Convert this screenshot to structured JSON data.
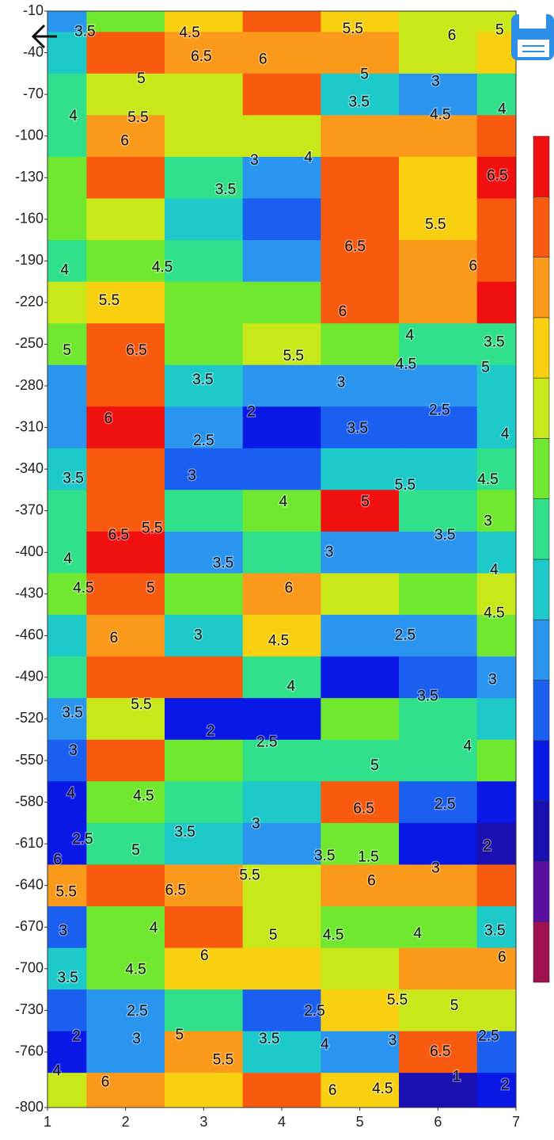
{
  "chart_data": {
    "type": "contour",
    "x": [
      1,
      2,
      3,
      4,
      5,
      6,
      7
    ],
    "y": [
      -10,
      -40,
      -70,
      -100,
      -130,
      -160,
      -190,
      -220,
      -250,
      -280,
      -310,
      -340,
      -370,
      -400,
      -430,
      -460,
      -490,
      -520,
      -550,
      -580,
      -610,
      -640,
      -670,
      -700,
      -730,
      -760,
      -790
    ],
    "z": [
      [
        3,
        4.5,
        5.5,
        6.5,
        5.5,
        5,
        5
      ],
      [
        3.5,
        6.5,
        6,
        6,
        6,
        5,
        5.5
      ],
      [
        4,
        5,
        5,
        6.5,
        3.5,
        3,
        4
      ],
      [
        4,
        6,
        5,
        5,
        6,
        6,
        6.5
      ],
      [
        4.5,
        6.5,
        4,
        3,
        6.5,
        5.5,
        7
      ],
      [
        4.5,
        5,
        3.5,
        2.5,
        6.5,
        5.5,
        6.5
      ],
      [
        4,
        4.5,
        4,
        3,
        6.5,
        6,
        6.5
      ],
      [
        5,
        5.5,
        4.5,
        4.5,
        6.5,
        6,
        7
      ],
      [
        4.5,
        6.5,
        4.5,
        5,
        4.5,
        4,
        4
      ],
      [
        3,
        6.5,
        3.5,
        3,
        3,
        3,
        3.5
      ],
      [
        3,
        7,
        3,
        2,
        2.5,
        2.5,
        3.5
      ],
      [
        3.5,
        6.5,
        2.5,
        2.5,
        3.5,
        3.5,
        4
      ],
      [
        4,
        6.5,
        4,
        4.5,
        7,
        4,
        4.5
      ],
      [
        4,
        7,
        3,
        4,
        3,
        3,
        3.5
      ],
      [
        4.5,
        6.5,
        4.5,
        6,
        5,
        4.5,
        5
      ],
      [
        3.5,
        6,
        3.5,
        5.5,
        3,
        3,
        4.5
      ],
      [
        4,
        6.5,
        6.5,
        4,
        2,
        2.5,
        3
      ],
      [
        3,
        5,
        2,
        2,
        4.5,
        4,
        3.5
      ],
      [
        2.5,
        6.5,
        4.5,
        4,
        4,
        4,
        4.5
      ],
      [
        2,
        4.5,
        4,
        3.5,
        6.5,
        2.5,
        2
      ],
      [
        2,
        4,
        3.5,
        3,
        4.5,
        2,
        1.5
      ],
      [
        6,
        6.5,
        6,
        5,
        6,
        6,
        6.5
      ],
      [
        2.5,
        4.5,
        6.5,
        5,
        4.5,
        4.5,
        3.5
      ],
      [
        3.5,
        4.5,
        5.5,
        5.5,
        5,
        6,
        6
      ],
      [
        2.5,
        3,
        4,
        2.5,
        5.5,
        5,
        5
      ],
      [
        2,
        3,
        6,
        3.5,
        3,
        6.5,
        2.5
      ],
      [
        5,
        6,
        5.5,
        6.5,
        5.5,
        1.5,
        2
      ]
    ],
    "levels": [
      0.5,
      1,
      1.5,
      2,
      2.5,
      3,
      3.5,
      4,
      4.5,
      5,
      5.5,
      6,
      6.5,
      7
    ],
    "colors": [
      "#a0124f",
      "#5a0fa0",
      "#1a0fb0",
      "#0a18e6",
      "#1a5fef",
      "#2a95ee",
      "#1ec9c9",
      "#30e08a",
      "#70e830",
      "#c8e81a",
      "#f8d010",
      "#fb9a1a",
      "#f85a10",
      "#f01010"
    ],
    "xlim": [
      1,
      7
    ],
    "ylim": [
      -800,
      -10
    ],
    "xticks": [
      1,
      2,
      3,
      4,
      5,
      6,
      7
    ],
    "yticks": [
      -10,
      -40,
      -70,
      -100,
      -130,
      -160,
      -190,
      -220,
      -250,
      -280,
      -310,
      -340,
      -370,
      -400,
      -430,
      -460,
      -490,
      -520,
      -550,
      -580,
      -610,
      -640,
      -670,
      -700,
      -730,
      -760,
      -800
    ],
    "contour_labels": [
      {
        "x": 1.48,
        "y": -25,
        "value": 3.5
      },
      {
        "x": 2.82,
        "y": -26,
        "value": 4.5
      },
      {
        "x": 4.91,
        "y": -23,
        "value": 5.5
      },
      {
        "x": 6.18,
        "y": -28,
        "value": 6
      },
      {
        "x": 6.79,
        "y": -24,
        "value": 5
      },
      {
        "x": 2.97,
        "y": -43,
        "value": 6.5
      },
      {
        "x": 3.76,
        "y": -45,
        "value": 6
      },
      {
        "x": 2.2,
        "y": -59,
        "value": 5
      },
      {
        "x": 5.06,
        "y": -56,
        "value": 5
      },
      {
        "x": 5.97,
        "y": -61,
        "value": 3
      },
      {
        "x": 4.99,
        "y": -76,
        "value": 3.5
      },
      {
        "x": 6.03,
        "y": -85,
        "value": 4.5
      },
      {
        "x": 6.82,
        "y": -81,
        "value": 4
      },
      {
        "x": 1.33,
        "y": -86,
        "value": 4
      },
      {
        "x": 2.16,
        "y": -87,
        "value": 5.5
      },
      {
        "x": 1.99,
        "y": -104,
        "value": 6
      },
      {
        "x": 3.65,
        "y": -118,
        "value": 3
      },
      {
        "x": 4.34,
        "y": -116,
        "value": 4
      },
      {
        "x": 3.28,
        "y": -139,
        "value": 3.5
      },
      {
        "x": 6.76,
        "y": -129,
        "value": 6.5
      },
      {
        "x": 5.97,
        "y": -164,
        "value": 5.5
      },
      {
        "x": 4.94,
        "y": -180,
        "value": 6.5
      },
      {
        "x": 2.47,
        "y": -195,
        "value": 4.5
      },
      {
        "x": 1.22,
        "y": -197,
        "value": 4
      },
      {
        "x": 6.45,
        "y": -194,
        "value": 6
      },
      {
        "x": 1.79,
        "y": -219,
        "value": 5.5
      },
      {
        "x": 4.78,
        "y": -227,
        "value": 6
      },
      {
        "x": 1.25,
        "y": -255,
        "value": 5
      },
      {
        "x": 2.14,
        "y": -255,
        "value": 6.5
      },
      {
        "x": 5.64,
        "y": -244,
        "value": 4
      },
      {
        "x": 6.72,
        "y": -249,
        "value": 3.5
      },
      {
        "x": 4.15,
        "y": -259,
        "value": 5.5
      },
      {
        "x": 5.59,
        "y": -265,
        "value": 4.5
      },
      {
        "x": 6.61,
        "y": -267,
        "value": 5
      },
      {
        "x": 2.99,
        "y": -276,
        "value": 3.5
      },
      {
        "x": 4.76,
        "y": -278,
        "value": 3
      },
      {
        "x": 3.61,
        "y": -299,
        "value": 2
      },
      {
        "x": 6.02,
        "y": -298,
        "value": 2.5
      },
      {
        "x": 1.78,
        "y": -304,
        "value": 6
      },
      {
        "x": 4.97,
        "y": -311,
        "value": 3.5
      },
      {
        "x": 6.86,
        "y": -315,
        "value": 4
      },
      {
        "x": 3.0,
        "y": -320,
        "value": 2.5
      },
      {
        "x": 2.85,
        "y": -345,
        "value": 3
      },
      {
        "x": 1.33,
        "y": -347,
        "value": 3.5
      },
      {
        "x": 5.58,
        "y": -352,
        "value": 5.5
      },
      {
        "x": 6.64,
        "y": -348,
        "value": 4.5
      },
      {
        "x": 4.02,
        "y": -364,
        "value": 4
      },
      {
        "x": 5.07,
        "y": -364,
        "value": 5
      },
      {
        "x": 1.91,
        "y": -388,
        "value": 6.5
      },
      {
        "x": 2.34,
        "y": -383,
        "value": 5.5
      },
      {
        "x": 6.09,
        "y": -388,
        "value": 3.5
      },
      {
        "x": 6.64,
        "y": -378,
        "value": 3
      },
      {
        "x": 1.26,
        "y": -405,
        "value": 4
      },
      {
        "x": 4.61,
        "y": -400,
        "value": 3
      },
      {
        "x": 3.25,
        "y": -408,
        "value": 3.5
      },
      {
        "x": 6.72,
        "y": -413,
        "value": 4
      },
      {
        "x": 1.46,
        "y": -426,
        "value": 4.5
      },
      {
        "x": 2.32,
        "y": -426,
        "value": 5
      },
      {
        "x": 4.09,
        "y": -426,
        "value": 6
      },
      {
        "x": 6.72,
        "y": -444,
        "value": 4.5
      },
      {
        "x": 1.85,
        "y": -462,
        "value": 6
      },
      {
        "x": 2.93,
        "y": -460,
        "value": 3
      },
      {
        "x": 3.96,
        "y": -464,
        "value": 4.5
      },
      {
        "x": 5.58,
        "y": -460,
        "value": 2.5
      },
      {
        "x": 4.12,
        "y": -497,
        "value": 4
      },
      {
        "x": 6.7,
        "y": -492,
        "value": 3
      },
      {
        "x": 5.87,
        "y": -504,
        "value": 3.5
      },
      {
        "x": 2.2,
        "y": -510,
        "value": 5.5
      },
      {
        "x": 1.32,
        "y": -516,
        "value": 3.5
      },
      {
        "x": 3.09,
        "y": -529,
        "value": 2
      },
      {
        "x": 3.81,
        "y": -537,
        "value": 2.5
      },
      {
        "x": 6.38,
        "y": -540,
        "value": 4
      },
      {
        "x": 1.33,
        "y": -543,
        "value": 3
      },
      {
        "x": 5.19,
        "y": -554,
        "value": 5
      },
      {
        "x": 1.3,
        "y": -574,
        "value": 4
      },
      {
        "x": 2.23,
        "y": -576,
        "value": 4.5
      },
      {
        "x": 5.05,
        "y": -585,
        "value": 6.5
      },
      {
        "x": 6.09,
        "y": -582,
        "value": 2.5
      },
      {
        "x": 3.67,
        "y": -596,
        "value": 3
      },
      {
        "x": 2.76,
        "y": -602,
        "value": 3.5
      },
      {
        "x": 1.45,
        "y": -607,
        "value": 2.5
      },
      {
        "x": 2.13,
        "y": -615,
        "value": 5
      },
      {
        "x": 4.55,
        "y": -619,
        "value": 3.5
      },
      {
        "x": 5.11,
        "y": -620,
        "value": 1.5
      },
      {
        "x": 6.63,
        "y": -612,
        "value": 2
      },
      {
        "x": 1.13,
        "y": -622,
        "value": 6
      },
      {
        "x": 5.97,
        "y": -628,
        "value": 3
      },
      {
        "x": 3.59,
        "y": -633,
        "value": 5.5
      },
      {
        "x": 5.15,
        "y": -637,
        "value": 6
      },
      {
        "x": 1.24,
        "y": -645,
        "value": 5.5
      },
      {
        "x": 2.64,
        "y": -644,
        "value": 6.5
      },
      {
        "x": 1.2,
        "y": -673,
        "value": 3
      },
      {
        "x": 2.36,
        "y": -671,
        "value": 4
      },
      {
        "x": 3.89,
        "y": -676,
        "value": 5
      },
      {
        "x": 4.66,
        "y": -676,
        "value": 4.5
      },
      {
        "x": 5.74,
        "y": -675,
        "value": 4
      },
      {
        "x": 6.73,
        "y": -673,
        "value": 3.5
      },
      {
        "x": 3.01,
        "y": -691,
        "value": 6
      },
      {
        "x": 6.82,
        "y": -692,
        "value": 6
      },
      {
        "x": 2.13,
        "y": -701,
        "value": 4.5
      },
      {
        "x": 1.26,
        "y": -707,
        "value": 3.5
      },
      {
        "x": 5.48,
        "y": -723,
        "value": 5.5
      },
      {
        "x": 6.21,
        "y": -727,
        "value": 5
      },
      {
        "x": 2.15,
        "y": -731,
        "value": 2.5
      },
      {
        "x": 4.42,
        "y": -731,
        "value": 2.5
      },
      {
        "x": 1.37,
        "y": -749,
        "value": 2
      },
      {
        "x": 2.14,
        "y": -751,
        "value": 3
      },
      {
        "x": 2.69,
        "y": -748,
        "value": 5
      },
      {
        "x": 3.84,
        "y": -751,
        "value": 3.5
      },
      {
        "x": 4.55,
        "y": -755,
        "value": 4
      },
      {
        "x": 5.42,
        "y": -752,
        "value": 3
      },
      {
        "x": 6.65,
        "y": -749,
        "value": 2.5
      },
      {
        "x": 6.03,
        "y": -760,
        "value": 6.5
      },
      {
        "x": 3.25,
        "y": -766,
        "value": 5.5
      },
      {
        "x": 1.12,
        "y": -774,
        "value": 4
      },
      {
        "x": 6.24,
        "y": -778,
        "value": 1
      },
      {
        "x": 1.74,
        "y": -782,
        "value": 6
      },
      {
        "x": 6.86,
        "y": -784,
        "value": 2
      },
      {
        "x": 4.65,
        "y": -788,
        "value": 6
      },
      {
        "x": 5.29,
        "y": -787,
        "value": 4.5
      }
    ]
  }
}
